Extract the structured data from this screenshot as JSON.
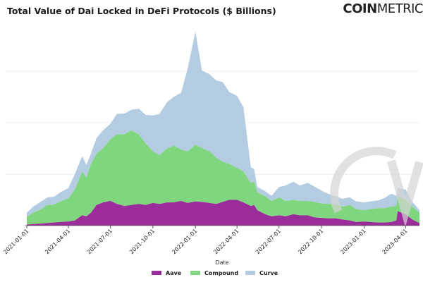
{
  "chart_data": {
    "type": "area",
    "stacked": true,
    "title": "Total Value of Dai Locked in DeFi Protocols ($ Billions)",
    "xlabel": "Date",
    "ylabel": "",
    "x_ticks": [
      "2021-01-01",
      "2021-04-01",
      "2021-07-01",
      "2021-10-01",
      "2022-01-01",
      "2022-04-01",
      "2022-07-01",
      "2022-10-01",
      "2023-01-01",
      "2023-04-01"
    ],
    "y_tick_labels_visible": false,
    "ylim": [
      0,
      4
    ],
    "grid": "horizontal",
    "legend_position": "bottom",
    "x": [
      "2021-01-01",
      "2021-01-15",
      "2021-02-01",
      "2021-02-15",
      "2021-03-01",
      "2021-03-15",
      "2021-04-01",
      "2021-04-15",
      "2021-05-01",
      "2021-05-10",
      "2021-05-20",
      "2021-06-01",
      "2021-06-15",
      "2021-07-01",
      "2021-07-15",
      "2021-08-01",
      "2021-08-15",
      "2021-09-01",
      "2021-09-15",
      "2021-10-01",
      "2021-10-15",
      "2021-11-01",
      "2021-11-15",
      "2021-12-01",
      "2021-12-15",
      "2022-01-01",
      "2022-01-15",
      "2022-02-01",
      "2022-02-15",
      "2022-03-01",
      "2022-03-15",
      "2022-04-01",
      "2022-04-15",
      "2022-05-01",
      "2022-05-08",
      "2022-05-15",
      "2022-06-01",
      "2022-06-15",
      "2022-07-01",
      "2022-07-15",
      "2022-08-01",
      "2022-08-15",
      "2022-09-01",
      "2022-09-15",
      "2022-10-01",
      "2022-10-15",
      "2022-11-01",
      "2022-11-15",
      "2022-12-01",
      "2022-12-15",
      "2023-01-01",
      "2023-01-15",
      "2023-02-01",
      "2023-02-15",
      "2023-03-01",
      "2023-03-12",
      "2023-03-15",
      "2023-04-01",
      "2023-04-15",
      "2023-05-01"
    ],
    "series": [
      {
        "name": "Aave",
        "color": "#9b2d9b",
        "values": [
          0.02,
          0.03,
          0.04,
          0.05,
          0.06,
          0.07,
          0.08,
          0.1,
          0.2,
          0.18,
          0.25,
          0.4,
          0.45,
          0.48,
          0.42,
          0.38,
          0.4,
          0.42,
          0.4,
          0.44,
          0.42,
          0.45,
          0.45,
          0.48,
          0.44,
          0.47,
          0.46,
          0.44,
          0.42,
          0.46,
          0.5,
          0.5,
          0.45,
          0.38,
          0.4,
          0.3,
          0.22,
          0.18,
          0.2,
          0.18,
          0.22,
          0.2,
          0.2,
          0.16,
          0.15,
          0.14,
          0.14,
          0.12,
          0.1,
          0.07,
          0.08,
          0.07,
          0.06,
          0.06,
          0.07,
          0.1,
          0.28,
          0.22,
          0.12,
          0.05
        ]
      },
      {
        "name": "Compound",
        "color": "#7fd67f",
        "values": [
          0.15,
          0.22,
          0.28,
          0.35,
          0.35,
          0.4,
          0.45,
          0.6,
          0.85,
          0.75,
          0.95,
          1.0,
          1.05,
          1.2,
          1.35,
          1.4,
          1.45,
          1.35,
          1.2,
          1.0,
          0.95,
          1.05,
          1.1,
          1.0,
          1.0,
          1.1,
          1.05,
          1.0,
          0.9,
          0.78,
          0.7,
          0.62,
          0.6,
          0.45,
          0.45,
          0.35,
          0.35,
          0.3,
          0.35,
          0.3,
          0.28,
          0.28,
          0.28,
          0.3,
          0.28,
          0.28,
          0.28,
          0.25,
          0.3,
          0.25,
          0.22,
          0.25,
          0.28,
          0.28,
          0.3,
          0.28,
          0.3,
          0.28,
          0.25,
          0.2
        ]
      },
      {
        "name": "Curve",
        "color": "#b4cce1",
        "values": [
          0.08,
          0.12,
          0.15,
          0.15,
          0.15,
          0.18,
          0.2,
          0.3,
          0.3,
          0.25,
          0.2,
          0.3,
          0.35,
          0.3,
          0.4,
          0.4,
          0.4,
          0.5,
          0.55,
          0.7,
          0.8,
          0.9,
          0.95,
          1.1,
          1.6,
          2.2,
          1.5,
          1.5,
          1.5,
          1.55,
          1.4,
          1.4,
          1.25,
          0.3,
          0.25,
          0.1,
          0.1,
          0.1,
          0.2,
          0.3,
          0.35,
          0.3,
          0.35,
          0.3,
          0.25,
          0.2,
          0.15,
          0.15,
          0.15,
          0.15,
          0.15,
          0.15,
          0.15,
          0.2,
          0.25,
          0.2,
          0.15,
          0.2,
          0.1,
          0.05
        ]
      }
    ]
  },
  "brand": {
    "logo_bold": "COIN",
    "logo_rest": "METRIC"
  }
}
